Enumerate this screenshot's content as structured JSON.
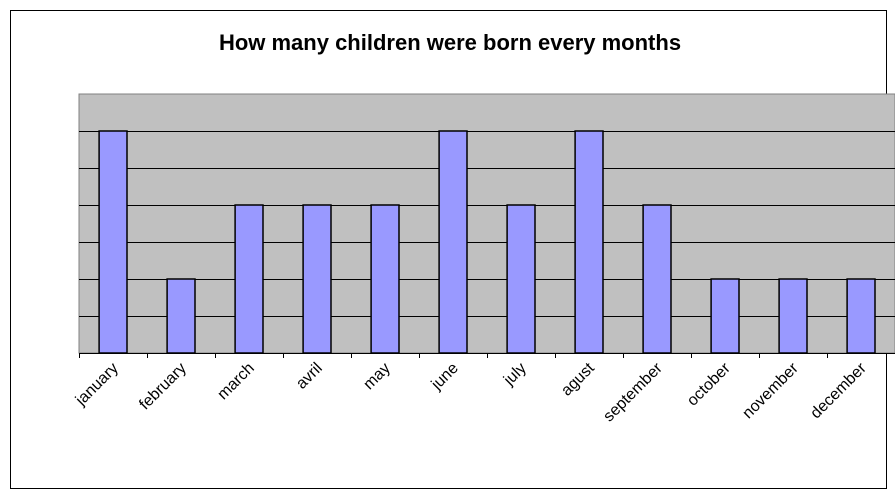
{
  "chart_data": {
    "type": "bar",
    "title": "How many children were born every months",
    "xlabel": "",
    "ylabel": "",
    "categories": [
      "january",
      "february",
      "march",
      "avril",
      "may",
      "june",
      "july",
      "agust",
      "september",
      "october",
      "november",
      "december"
    ],
    "values": [
      6,
      2,
      4,
      4,
      4,
      6,
      4,
      6,
      4,
      2,
      2,
      2
    ],
    "ylim": [
      0,
      7
    ],
    "grid": true,
    "legend": "none",
    "colors": {
      "bar_fill": "#9999ff",
      "bar_stroke": "#000000",
      "plot_background": "#c0c0c0",
      "gridline": "#000000"
    }
  }
}
